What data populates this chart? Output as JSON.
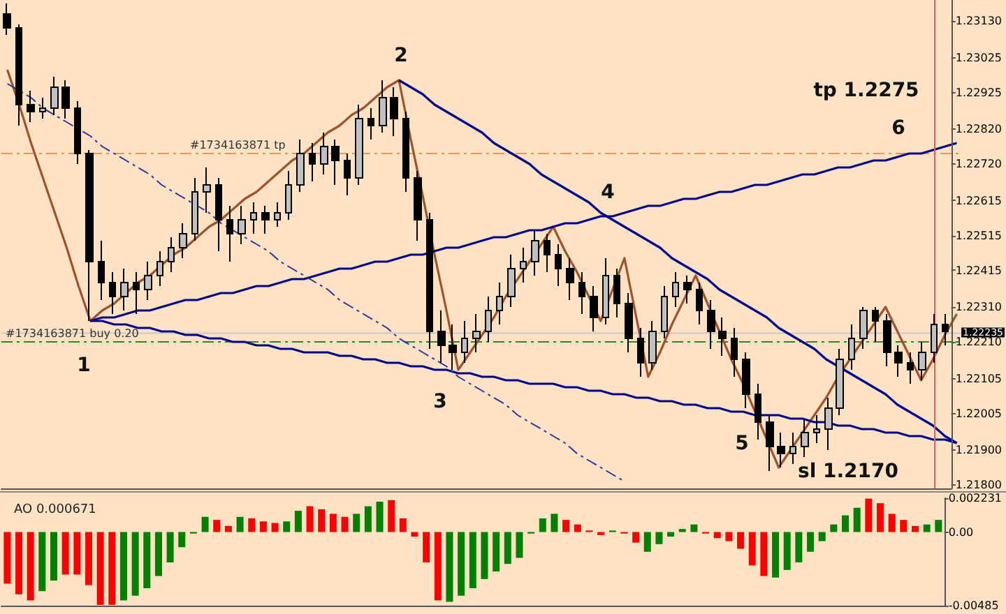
{
  "chart_data": [
    {
      "type": "candlestick",
      "tick_labels": "y",
      "categories": [
        null,
        null,
        null,
        null,
        null,
        null,
        null,
        null,
        null,
        null,
        null,
        null,
        null,
        null,
        null,
        null,
        null,
        null,
        null,
        null,
        null,
        null,
        null,
        null,
        null,
        null,
        null,
        null,
        null,
        null,
        null,
        null,
        null,
        null,
        null,
        null,
        null,
        null,
        null,
        null,
        null,
        null,
        null,
        null,
        null,
        null,
        null,
        null,
        null,
        null,
        null,
        null,
        null,
        null,
        null,
        null,
        null,
        null,
        null,
        null,
        null,
        null,
        null,
        null,
        null,
        null,
        null,
        null,
        null,
        null,
        null,
        null,
        null,
        null,
        null,
        null,
        null,
        null,
        null,
        null,
        null
      ],
      "ohlc": [
        [
          1.2315,
          1.2318,
          1.2309,
          1.2311
        ],
        [
          1.2311,
          1.2312,
          1.2283,
          1.2289
        ],
        [
          1.2289,
          1.2293,
          1.2284,
          1.2287
        ],
        [
          1.2287,
          1.2291,
          1.2285,
          1.2288
        ],
        [
          1.2288,
          1.2297,
          1.2286,
          1.2294
        ],
        [
          1.2294,
          1.2296,
          1.2285,
          1.2288
        ],
        [
          1.2288,
          1.229,
          1.2272,
          1.2275
        ],
        [
          1.2275,
          1.2276,
          1.2227,
          1.2244
        ],
        [
          1.2244,
          1.225,
          1.2233,
          1.2238
        ],
        [
          1.2238,
          1.2241,
          1.2229,
          1.2234
        ],
        [
          1.2234,
          1.2242,
          1.223,
          1.2238
        ],
        [
          1.2238,
          1.2241,
          1.2229,
          1.2236
        ],
        [
          1.2236,
          1.2244,
          1.2233,
          1.224
        ],
        [
          1.224,
          1.2247,
          1.2237,
          1.2244
        ],
        [
          1.2244,
          1.2251,
          1.2241,
          1.2248
        ],
        [
          1.2248,
          1.2255,
          1.2245,
          1.2252
        ],
        [
          1.2252,
          1.2268,
          1.225,
          1.2264
        ],
        [
          1.2264,
          1.2271,
          1.2258,
          1.2266
        ],
        [
          1.2266,
          1.2268,
          1.2247,
          1.2256
        ],
        [
          1.2256,
          1.226,
          1.2244,
          1.2252
        ],
        [
          1.2252,
          1.226,
          1.2249,
          1.2256
        ],
        [
          1.2256,
          1.2261,
          1.2252,
          1.2258
        ],
        [
          1.2258,
          1.226,
          1.2252,
          1.2256
        ],
        [
          1.2256,
          1.2261,
          1.2254,
          1.2258
        ],
        [
          1.2258,
          1.227,
          1.2256,
          1.2266
        ],
        [
          1.2266,
          1.2279,
          1.2264,
          1.2275
        ],
        [
          1.2275,
          1.2278,
          1.2267,
          1.2272
        ],
        [
          1.2272,
          1.2281,
          1.2269,
          1.2277
        ],
        [
          1.2277,
          1.2279,
          1.2266,
          1.2273
        ],
        [
          1.2273,
          1.2275,
          1.2263,
          1.2268
        ],
        [
          1.2268,
          1.2289,
          1.2266,
          1.2285
        ],
        [
          1.2285,
          1.2288,
          1.2279,
          1.2283
        ],
        [
          1.2283,
          1.2296,
          1.2281,
          1.2291
        ],
        [
          1.2291,
          1.2294,
          1.228,
          1.2285
        ],
        [
          1.2285,
          1.2287,
          1.2264,
          1.2268
        ],
        [
          1.2268,
          1.227,
          1.225,
          1.2256
        ],
        [
          1.2256,
          1.2258,
          1.2219,
          1.2224
        ],
        [
          1.2224,
          1.223,
          1.2215,
          1.222
        ],
        [
          1.222,
          1.2226,
          1.2213,
          1.2218
        ],
        [
          1.2218,
          1.2227,
          1.2215,
          1.2222
        ],
        [
          1.2222,
          1.2229,
          1.2218,
          1.2224
        ],
        [
          1.2224,
          1.2234,
          1.2221,
          1.223
        ],
        [
          1.223,
          1.2238,
          1.2226,
          1.2234
        ],
        [
          1.2234,
          1.2246,
          1.2231,
          1.2242
        ],
        [
          1.2242,
          1.2248,
          1.2238,
          1.2244
        ],
        [
          1.2244,
          1.2253,
          1.224,
          1.225
        ],
        [
          1.225,
          1.2252,
          1.2241,
          1.2246
        ],
        [
          1.2246,
          1.2249,
          1.2237,
          1.2242
        ],
        [
          1.2242,
          1.2245,
          1.2233,
          1.2238
        ],
        [
          1.2238,
          1.2241,
          1.2229,
          1.2234
        ],
        [
          1.2234,
          1.2237,
          1.2224,
          1.2228
        ],
        [
          1.2228,
          1.2245,
          1.2226,
          1.224
        ],
        [
          1.224,
          1.2242,
          1.2228,
          1.2232
        ],
        [
          1.2232,
          1.2235,
          1.2218,
          1.2222
        ],
        [
          1.2222,
          1.2225,
          1.2211,
          1.2215
        ],
        [
          1.2215,
          1.2227,
          1.2213,
          1.2224
        ],
        [
          1.2224,
          1.2237,
          1.2222,
          1.2234
        ],
        [
          1.2234,
          1.2241,
          1.2231,
          1.2238
        ],
        [
          1.2238,
          1.224,
          1.2232,
          1.2236
        ],
        [
          1.2236,
          1.2238,
          1.2226,
          1.223
        ],
        [
          1.223,
          1.2233,
          1.2219,
          1.2224
        ],
        [
          1.2224,
          1.2228,
          1.2217,
          1.2222
        ],
        [
          1.2222,
          1.2225,
          1.2211,
          1.2216
        ],
        [
          1.2216,
          1.2218,
          1.2202,
          1.2206
        ],
        [
          1.2206,
          1.2209,
          1.2193,
          1.2198
        ],
        [
          1.2198,
          1.22,
          1.2184,
          1.2191
        ],
        [
          1.2191,
          1.2195,
          1.2185,
          1.2189
        ],
        [
          1.2189,
          1.2195,
          1.2186,
          1.2191
        ],
        [
          1.2191,
          1.2199,
          1.2188,
          1.2195
        ],
        [
          1.2195,
          1.22,
          1.2192,
          1.2196
        ],
        [
          1.2196,
          1.2205,
          1.219,
          1.2202
        ],
        [
          1.2202,
          1.2219,
          1.22,
          1.2216
        ],
        [
          1.2216,
          1.2226,
          1.2213,
          1.2222
        ],
        [
          1.2222,
          1.2231,
          1.2219,
          1.223
        ],
        [
          1.223,
          1.2231,
          1.2221,
          1.2227
        ],
        [
          1.2227,
          1.2229,
          1.2214,
          1.2218
        ],
        [
          1.2218,
          1.222,
          1.2211,
          1.2215
        ],
        [
          1.2215,
          1.2218,
          1.2209,
          1.2213
        ],
        [
          1.2213,
          1.2221,
          1.221,
          1.2218
        ],
        [
          1.2218,
          1.2229,
          1.2215,
          1.2226
        ],
        [
          1.2226,
          1.2229,
          1.222,
          1.2224
        ]
      ],
      "colors": [
        "#000000",
        "#000000",
        "#000000",
        "#c0c0c0",
        "#c0c0c0",
        "#000000",
        "#000000",
        "#000000",
        "#000000",
        "#000000",
        "#c0c0c0",
        "#000000",
        "#c0c0c0",
        "#c0c0c0",
        "#c0c0c0",
        "#c0c0c0",
        "#c0c0c0",
        "#c0c0c0",
        "#000000",
        "#000000",
        "#c0c0c0",
        "#c0c0c0",
        "#000000",
        "#c0c0c0",
        "#c0c0c0",
        "#c0c0c0",
        "#000000",
        "#c0c0c0",
        "#000000",
        "#000000",
        "#c0c0c0",
        "#000000",
        "#c0c0c0",
        "#000000",
        "#000000",
        "#000000",
        "#000000",
        "#000000",
        "#000000",
        "#c0c0c0",
        "#c0c0c0",
        "#c0c0c0",
        "#c0c0c0",
        "#c0c0c0",
        "#c0c0c0",
        "#c0c0c0",
        "#000000",
        "#000000",
        "#000000",
        "#000000",
        "#000000",
        "#c0c0c0",
        "#000000",
        "#000000",
        "#000000",
        "#c0c0c0",
        "#c0c0c0",
        "#c0c0c0",
        "#000000",
        "#000000",
        "#000000",
        "#000000",
        "#000000",
        "#000000",
        "#000000",
        "#000000",
        "#000000",
        "#c0c0c0",
        "#c0c0c0",
        "#c0c0c0",
        "#c0c0c0",
        "#c0c0c0",
        "#c0c0c0",
        "#c0c0c0",
        "#000000",
        "#000000",
        "#000000",
        "#000000",
        "#c0c0c0",
        "#c0c0c0",
        "#000000"
      ],
      "ylim": [
        1.2179,
        1.2319
      ],
      "yticks": [
        {
          "value": 1.2313,
          "label": "1.23130"
        },
        {
          "value": 1.23025,
          "label": "1.23025"
        },
        {
          "value": 1.22925,
          "label": "1.22925"
        },
        {
          "value": 1.2282,
          "label": "1.22820"
        },
        {
          "value": 1.2272,
          "label": "1.22720"
        },
        {
          "value": 1.22615,
          "label": "1.22615"
        },
        {
          "value": 1.22515,
          "label": "1.22515"
        },
        {
          "value": 1.22415,
          "label": "1.22415"
        },
        {
          "value": 1.2231,
          "label": "1.22310"
        },
        {
          "value": 1.2221,
          "label": "1.22210"
        },
        {
          "value": 1.22105,
          "label": "1.22105"
        },
        {
          "value": 1.22005,
          "label": "1.22005"
        },
        {
          "value": 1.219,
          "label": "1.21900"
        },
        {
          "value": 1.218,
          "label": "1.21800"
        }
      ]
    },
    {
      "type": "line",
      "tick_labels": false,
      "categories": [
        null,
        null,
        null,
        null,
        null,
        null,
        null,
        null,
        null,
        null,
        null,
        null,
        null,
        null,
        null,
        null,
        null,
        null,
        null,
        null,
        null,
        null,
        null,
        null,
        null,
        null,
        null,
        null,
        null,
        null,
        null,
        null,
        null,
        null,
        null,
        null,
        null,
        null,
        null,
        null,
        null,
        null,
        null,
        null,
        null,
        null,
        null,
        null,
        null,
        null,
        null,
        null,
        null,
        null,
        null,
        null,
        null,
        null,
        null,
        null,
        null,
        null,
        null,
        null,
        null,
        null,
        null,
        null,
        null,
        null,
        null,
        null,
        null,
        null,
        null,
        null,
        null,
        null,
        null,
        null,
        null
      ],
      "series": [
        {
          "color": "#a0522d",
          "values": [
            1.2299,
            1.2289,
            1.2278,
            1.2268,
            1.2258,
            1.2248,
            1.2237,
            1.2227,
            1.223,
            1.2232,
            1.2235,
            1.2238,
            1.224,
            1.2243,
            1.2246,
            1.2248,
            1.2251,
            1.2254,
            1.2256,
            1.2259,
            1.2262,
            1.2264,
            1.2267,
            1.227,
            1.2273,
            1.2275,
            1.2278,
            1.2281,
            1.2283,
            1.2286,
            1.2288,
            1.2291,
            1.2294,
            1.2296,
            1.2279,
            1.2263,
            1.2246,
            1.223,
            1.2213,
            1.2218,
            1.2223,
            1.2228,
            1.2234,
            1.2239,
            1.2244,
            1.2249,
            1.2254,
            1.2247,
            1.2241,
            1.2234,
            1.2227,
            1.2236,
            1.2245,
            1.2228,
            1.2211,
            1.2218,
            1.2226,
            1.2233,
            1.224,
            1.2232,
            1.2224,
            1.2216,
            1.2209,
            1.2201,
            1.2193,
            1.2185,
            1.219,
            1.2195,
            1.22,
            1.2205,
            1.2211,
            1.2216,
            1.2221,
            1.2226,
            1.2231,
            1.2224,
            1.2217,
            1.221,
            1.2216,
            1.2223,
            1.2229
          ]
        },
        {
          "color": "#00008b",
          "values": [
            null,
            null,
            null,
            null,
            null,
            null,
            null,
            1.2227,
            1.2228,
            1.2228,
            1.2229,
            1.223,
            1.223,
            1.2231,
            1.2232,
            1.2233,
            1.2233,
            1.2234,
            1.2235,
            1.2235,
            1.2236,
            1.2237,
            1.2237,
            1.2238,
            1.2239,
            1.2239,
            1.224,
            1.2241,
            1.2242,
            1.2242,
            1.2243,
            1.2244,
            1.2244,
            1.2245,
            1.2246,
            1.2246,
            1.2247,
            1.2248,
            1.2248,
            1.2249,
            1.225,
            1.2251,
            1.2251,
            1.2252,
            1.2253,
            1.2253,
            1.2254,
            1.2255,
            1.2255,
            1.2256,
            1.2257,
            1.2257,
            1.2258,
            1.2259,
            1.226,
            1.226,
            1.2261,
            1.2262,
            1.2262,
            1.2263,
            1.2264,
            1.2264,
            1.2265,
            1.2266,
            1.2266,
            1.2267,
            1.2268,
            1.2269,
            1.2269,
            1.227,
            1.2271,
            1.2271,
            1.2272,
            1.2273,
            1.2273,
            1.2274,
            1.2275,
            1.2275,
            1.2276,
            1.2277,
            1.2278
          ]
        },
        {
          "color": "#00008b",
          "values": [
            null,
            null,
            null,
            null,
            null,
            null,
            null,
            1.2227,
            1.2227,
            1.2226,
            1.2226,
            1.2225,
            1.2225,
            1.2224,
            1.2224,
            1.2223,
            1.2223,
            1.2222,
            1.2222,
            1.2221,
            1.2221,
            1.222,
            1.222,
            1.2219,
            1.2219,
            1.2218,
            1.2218,
            1.2218,
            1.2217,
            1.2217,
            1.2216,
            1.2216,
            1.2215,
            1.2215,
            1.2214,
            1.2214,
            1.2213,
            1.2213,
            1.2212,
            1.2212,
            1.2211,
            1.2211,
            1.221,
            1.221,
            1.2209,
            1.2209,
            1.2209,
            1.2208,
            1.2208,
            1.2207,
            1.2207,
            1.2206,
            1.2206,
            1.2205,
            1.2205,
            1.2204,
            1.2204,
            1.2203,
            1.2203,
            1.2202,
            1.2202,
            1.2201,
            1.2201,
            1.22,
            1.22,
            1.22,
            1.2199,
            1.2199,
            1.2198,
            1.2198,
            1.2197,
            1.2197,
            1.2196,
            1.2196,
            1.2195,
            1.2195,
            1.2194,
            1.2194,
            1.2193,
            1.2193,
            1.2192
          ]
        },
        {
          "color": "#00008b",
          "values": [
            null,
            null,
            null,
            null,
            null,
            null,
            null,
            null,
            null,
            null,
            null,
            null,
            null,
            null,
            null,
            null,
            null,
            null,
            null,
            null,
            null,
            null,
            null,
            null,
            null,
            null,
            null,
            null,
            null,
            null,
            null,
            null,
            null,
            1.2296,
            1.2294,
            1.2292,
            1.2289,
            1.2287,
            1.2285,
            1.2283,
            1.2281,
            1.2278,
            1.2276,
            1.2274,
            1.2272,
            1.2269,
            1.2267,
            1.2265,
            1.2263,
            1.2261,
            1.2258,
            1.2256,
            1.2254,
            1.2252,
            1.225,
            1.2248,
            1.2245,
            1.2243,
            1.2241,
            1.2239,
            1.2236,
            1.2234,
            1.2232,
            1.223,
            1.2228,
            1.2225,
            1.2223,
            1.2221,
            1.2219,
            1.2216,
            1.2214,
            1.2212,
            1.221,
            1.2208,
            1.2206,
            1.2203,
            1.2201,
            1.2199,
            1.2197,
            1.2194,
            1.2192
          ]
        },
        {
          "color": "#3030a0",
          "line_style": "dashed",
          "values": [
            1.2295,
            1.2293,
            1.2291,
            1.2288,
            1.2286,
            1.2284,
            1.2282,
            1.228,
            1.2277,
            1.2275,
            1.2273,
            1.2271,
            1.2269,
            1.2266,
            1.2264,
            1.2262,
            1.226,
            1.2258,
            1.2255,
            1.2253,
            1.2251,
            1.2249,
            1.2247,
            1.2244,
            1.2242,
            1.224,
            1.2238,
            1.2236,
            1.2233,
            1.2231,
            1.2229,
            1.2227,
            1.2225,
            1.2222,
            1.222,
            1.2218,
            1.2216,
            1.2214,
            1.2211,
            1.2209,
            1.2207,
            1.2205,
            1.2203,
            1.22,
            1.2198,
            1.2196,
            1.2194,
            1.2192,
            1.2189,
            1.2187,
            1.2185,
            1.2183,
            1.2181,
            null,
            null,
            null,
            null,
            null,
            null,
            null,
            null,
            null,
            null,
            null,
            null,
            null,
            null,
            null,
            null,
            null,
            null,
            null,
            null,
            null,
            null,
            null,
            null,
            null,
            null,
            null,
            null
          ]
        }
      ],
      "ylim": [
        1.2179,
        1.2319
      ],
      "ref_lines": [
        {
          "axis": "y",
          "value": 1.2275,
          "label": "#1734163871 tp",
          "color": "#ff8c5a",
          "line_style": "dashed"
        },
        {
          "axis": "y",
          "value": 1.2221,
          "label": "#1734163871 buy 0.20",
          "color": "#228b22",
          "line_style": "dashed"
        },
        {
          "axis": "y",
          "value": 1.22235,
          "label": "1.22235",
          "color": "#c8c8c8",
          "line_style": "solid"
        },
        {
          "axis": "x",
          "color": "#ff5a5a",
          "line_style": "solid"
        }
      ],
      "annotations": [
        "1",
        "2",
        "3",
        "4",
        "5",
        "6",
        "tp 1.2275",
        "sl 1.2170"
      ]
    },
    {
      "type": "bar",
      "title": "AO 0.000671",
      "tick_labels": "y",
      "categories": [
        null,
        null,
        null,
        null,
        null,
        null,
        null,
        null,
        null,
        null,
        null,
        null,
        null,
        null,
        null,
        null,
        null,
        null,
        null,
        null,
        null,
        null,
        null,
        null,
        null,
        null,
        null,
        null,
        null,
        null,
        null,
        null,
        null,
        null,
        null,
        null,
        null,
        null,
        null,
        null,
        null,
        null,
        null,
        null,
        null,
        null,
        null,
        null,
        null,
        null,
        null,
        null,
        null,
        null,
        null,
        null,
        null,
        null,
        null,
        null,
        null,
        null,
        null,
        null,
        null,
        null,
        null,
        null,
        null,
        null,
        null,
        null,
        null,
        null,
        null,
        null,
        null,
        null,
        null,
        null,
        null
      ],
      "values": [
        -0.0034,
        -0.0041,
        -0.0045,
        -0.0039,
        -0.0032,
        -0.0028,
        -0.0028,
        -0.0035,
        -0.0048,
        -0.0048,
        -0.0045,
        -0.0042,
        -0.0037,
        -0.0029,
        -0.002,
        -0.001,
        -0.0001,
        0.001,
        0.0008,
        0.0004,
        0.001,
        0.0009,
        0.0007,
        0.0006,
        0.0007,
        0.0014,
        0.0017,
        0.0015,
        0.0012,
        0.001,
        0.0012,
        0.0017,
        0.002,
        0.0021,
        0.0009,
        -0.0003,
        -0.002,
        -0.0045,
        -0.0046,
        -0.0042,
        -0.0037,
        -0.0031,
        -0.0026,
        -0.0021,
        -0.0017,
        -0.0001,
        0.0009,
        0.0012,
        0.0008,
        0.0005,
        0.0001,
        -0.0002,
        0.0001,
        -0.0001,
        -0.0007,
        -0.0013,
        -0.0008,
        -0.0003,
        0.0002,
        0.0005,
        -0.0001,
        -0.0004,
        -0.0006,
        -0.0011,
        -0.0022,
        -0.0029,
        -0.003,
        -0.0025,
        -0.002,
        -0.0013,
        -0.0006,
        0.0005,
        0.0011,
        0.0016,
        0.0022,
        0.0019,
        0.0012,
        0.0008,
        0.0004,
        0.0005,
        0.0008
      ],
      "colors": [
        "#ff0000",
        "#ff0000",
        "#ff0000",
        "#008000",
        "#008000",
        "#ff0000",
        "#ff0000",
        "#ff0000",
        "#ff0000",
        "#ff0000",
        "#008000",
        "#008000",
        "#008000",
        "#008000",
        "#008000",
        "#008000",
        "#008000",
        "#008000",
        "#ff0000",
        "#ff0000",
        "#008000",
        "#ff0000",
        "#ff0000",
        "#ff0000",
        "#008000",
        "#008000",
        "#ff0000",
        "#ff0000",
        "#ff0000",
        "#ff0000",
        "#008000",
        "#008000",
        "#008000",
        "#ff0000",
        "#ff0000",
        "#ff0000",
        "#ff0000",
        "#ff0000",
        "#008000",
        "#008000",
        "#008000",
        "#008000",
        "#008000",
        "#008000",
        "#008000",
        "#008000",
        "#008000",
        "#008000",
        "#ff0000",
        "#ff0000",
        "#ff0000",
        "#ff0000",
        "#008000",
        "#ff0000",
        "#ff0000",
        "#008000",
        "#008000",
        "#008000",
        "#008000",
        "#008000",
        "#ff0000",
        "#ff0000",
        "#ff0000",
        "#ff0000",
        "#ff0000",
        "#ff0000",
        "#008000",
        "#008000",
        "#008000",
        "#008000",
        "#008000",
        "#008000",
        "#008000",
        "#008000",
        "#ff0000",
        "#ff0000",
        "#ff0000",
        "#ff0000",
        "#ff0000",
        "#008000",
        "#008000"
      ],
      "ylim": [
        -0.00485,
        0.002231
      ],
      "yticks": [
        {
          "value": 0.002231,
          "label": "0.002231"
        },
        {
          "value": 0,
          "label": "0.00"
        },
        {
          "value": -0.00485,
          "label": "-0.00485"
        }
      ]
    }
  ]
}
